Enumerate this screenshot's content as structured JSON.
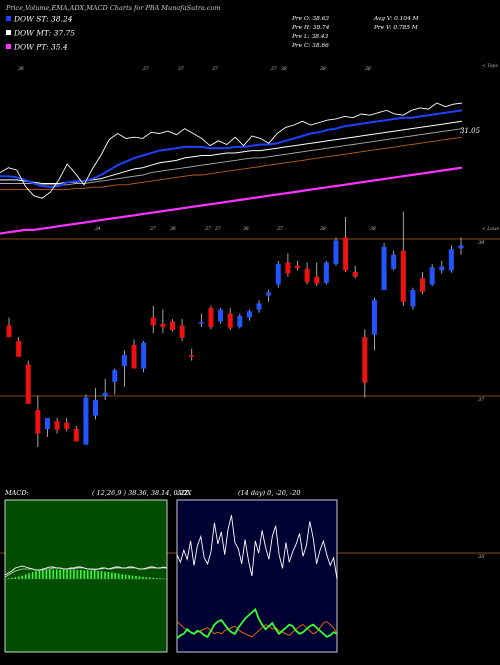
{
  "header": {
    "title": "Price,Volume,EMA,ADX,MACD Charts for PBA MunafaSutra.com",
    "legend": [
      {
        "label": "DOW ST: 38.24",
        "color": "#1e40ff"
      },
      {
        "label": "DOW MT: 37.75",
        "color": "#ffffff"
      },
      {
        "label": "DOW PT: 35.4",
        "color": "#ff33ff"
      }
    ],
    "ohlc": [
      "Pre  O: 38.63",
      "Pre  H: 38.74",
      "Pre  L: 38.43",
      "Pre  C: 38.66"
    ],
    "volume": [
      "Avg V: 0.104  M",
      "Pre  V: 0.785 M"
    ]
  },
  "ema_panel": {
    "top_tag": "< Tops",
    "low_tag": "< Lows",
    "price_label": "31.05",
    "top_markers": [
      "36",
      "37",
      "37",
      "37",
      "37",
      "38",
      "38",
      "38"
    ],
    "low_markers": [
      "34",
      "37",
      "36",
      "37",
      "37",
      "36",
      "37",
      "38",
      "38"
    ],
    "series": {
      "price": {
        "color": "#ffffff",
        "values": [
          32.2,
          32.6,
          32.4,
          31.1,
          30.3,
          30.1,
          30.6,
          31.6,
          32.9,
          32.1,
          31.2,
          32.5,
          33.6,
          34.9,
          35.4,
          35.0,
          35.1,
          35.0,
          35.5,
          35.4,
          35.6,
          35.3,
          35.8,
          35.4,
          35.0,
          34.4,
          34.8,
          34.5,
          35.1,
          34.4,
          35.2,
          35.0,
          34.6,
          35.4,
          35.9,
          36.1,
          36.4,
          36.1,
          36.3,
          36.5,
          36.6,
          36.8,
          36.7,
          37.0,
          36.9,
          37.1,
          37.3,
          37.0,
          36.9,
          37.3,
          37.5,
          37.4,
          37.9,
          37.6,
          37.8,
          37.9
        ]
      },
      "ema_short": {
        "color": "#1e40ff",
        "values": [
          31.9,
          31.9,
          31.8,
          31.6,
          31.3,
          31.1,
          31.0,
          31.1,
          31.4,
          31.5,
          31.5,
          31.7,
          32.0,
          32.4,
          32.8,
          33.1,
          33.4,
          33.6,
          33.8,
          34.0,
          34.1,
          34.2,
          34.3,
          34.3,
          34.3,
          34.2,
          34.2,
          34.2,
          34.3,
          34.3,
          34.4,
          34.5,
          34.5,
          34.6,
          34.8,
          35.0,
          35.2,
          35.4,
          35.5,
          35.7,
          35.8,
          36.0,
          36.1,
          36.2,
          36.3,
          36.4,
          36.5,
          36.6,
          36.7,
          36.7,
          36.8,
          36.9,
          37.0,
          37.1,
          37.2,
          37.3
        ]
      },
      "ema_mid": {
        "color": "#ffffff",
        "values": [
          31.6,
          31.6,
          31.6,
          31.5,
          31.4,
          31.3,
          31.3,
          31.3,
          31.4,
          31.4,
          31.5,
          31.6,
          31.7,
          31.9,
          32.1,
          32.3,
          32.5,
          32.6,
          32.8,
          33.0,
          33.1,
          33.2,
          33.4,
          33.5,
          33.6,
          33.6,
          33.7,
          33.8,
          33.8,
          33.9,
          34.0,
          34.0,
          34.1,
          34.2,
          34.3,
          34.4,
          34.5,
          34.6,
          34.7,
          34.8,
          34.9,
          35.0,
          35.1,
          35.2,
          35.3,
          35.4,
          35.5,
          35.6,
          35.7,
          35.8,
          35.9,
          36.0,
          36.1,
          36.2,
          36.3,
          36.4
        ]
      },
      "ema_long": {
        "color": "#aaaaaa",
        "values": [
          31.3,
          31.3,
          31.3,
          31.3,
          31.3,
          31.2,
          31.2,
          31.2,
          31.2,
          31.3,
          31.3,
          31.4,
          31.5,
          31.6,
          31.7,
          31.8,
          31.9,
          32.0,
          32.2,
          32.3,
          32.4,
          32.5,
          32.6,
          32.7,
          32.8,
          32.9,
          33.0,
          33.1,
          33.2,
          33.3,
          33.4,
          33.4,
          33.5,
          33.6,
          33.7,
          33.8,
          33.9,
          34.0,
          34.1,
          34.2,
          34.3,
          34.4,
          34.5,
          34.6,
          34.7,
          34.8,
          34.9,
          35.0,
          35.1,
          35.2,
          35.3,
          35.4,
          35.5,
          35.6,
          35.7,
          35.8
        ]
      },
      "ema_xlong": {
        "color": "#b85c1a",
        "values": [
          30.8,
          30.8,
          30.8,
          30.8,
          30.8,
          30.8,
          30.8,
          30.8,
          30.8,
          30.9,
          30.9,
          31.0,
          31.0,
          31.1,
          31.2,
          31.2,
          31.3,
          31.4,
          31.5,
          31.6,
          31.7,
          31.8,
          31.9,
          32.0,
          32.0,
          32.1,
          32.2,
          32.3,
          32.4,
          32.5,
          32.6,
          32.7,
          32.8,
          32.9,
          33.0,
          33.1,
          33.2,
          33.3,
          33.4,
          33.5,
          33.6,
          33.7,
          33.8,
          33.9,
          34.0,
          34.1,
          34.2,
          34.3,
          34.4,
          34.5,
          34.6,
          34.7,
          34.8,
          34.9,
          35.0,
          35.1
        ]
      },
      "ema_pt": {
        "color": "#ff33ff",
        "values": [
          27.2,
          27.3,
          27.4,
          27.5,
          27.5,
          27.6,
          27.7,
          27.8,
          27.9,
          28.0,
          28.1,
          28.2,
          28.3,
          28.4,
          28.5,
          28.6,
          28.7,
          28.8,
          28.9,
          29.0,
          29.1,
          29.2,
          29.3,
          29.4,
          29.5,
          29.6,
          29.7,
          29.8,
          29.9,
          30.0,
          30.1,
          30.2,
          30.3,
          30.4,
          30.5,
          30.6,
          30.7,
          30.8,
          30.9,
          31.0,
          31.1,
          31.2,
          31.3,
          31.4,
          31.5,
          31.6,
          31.7,
          31.8,
          31.9,
          32.0,
          32.1,
          32.2,
          32.3,
          32.4,
          32.5,
          32.6
        ]
      }
    }
  },
  "chart_data": {
    "type": "candlestick",
    "title": "Price,Volume,EMA,ADX,MACD Charts for PBA MunafaSutra.com",
    "y_ticks": [
      39,
      37,
      35
    ],
    "ylim": [
      34.8,
      39.35
    ],
    "candles": [
      {
        "o": 37.9,
        "h": 38.0,
        "l": 37.75,
        "c": 37.75
      },
      {
        "o": 37.7,
        "h": 37.75,
        "l": 37.5,
        "c": 37.5
      },
      {
        "o": 37.4,
        "h": 37.45,
        "l": 36.9,
        "c": 36.9
      },
      {
        "o": 36.82,
        "h": 37.0,
        "l": 36.35,
        "c": 36.52
      },
      {
        "o": 36.58,
        "h": 36.72,
        "l": 36.48,
        "c": 36.72
      },
      {
        "o": 36.68,
        "h": 36.72,
        "l": 36.52,
        "c": 36.57
      },
      {
        "o": 36.66,
        "h": 36.72,
        "l": 36.55,
        "c": 36.58
      },
      {
        "o": 36.58,
        "h": 36.62,
        "l": 36.42,
        "c": 36.42
      },
      {
        "o": 36.38,
        "h": 37.02,
        "l": 36.38,
        "c": 36.98
      },
      {
        "o": 36.75,
        "h": 37.1,
        "l": 36.7,
        "c": 36.95
      },
      {
        "o": 37.0,
        "h": 37.22,
        "l": 36.95,
        "c": 37.04
      },
      {
        "o": 37.18,
        "h": 37.35,
        "l": 37.02,
        "c": 37.33
      },
      {
        "o": 37.38,
        "h": 37.58,
        "l": 37.12,
        "c": 37.52
      },
      {
        "o": 37.65,
        "h": 37.72,
        "l": 37.35,
        "c": 37.35
      },
      {
        "o": 37.35,
        "h": 37.7,
        "l": 37.3,
        "c": 37.68
      },
      {
        "o": 38.0,
        "h": 38.15,
        "l": 37.8,
        "c": 37.9
      },
      {
        "o": 37.92,
        "h": 38.1,
        "l": 37.8,
        "c": 37.88
      },
      {
        "o": 37.95,
        "h": 37.98,
        "l": 37.82,
        "c": 37.84
      },
      {
        "o": 37.9,
        "h": 37.98,
        "l": 37.7,
        "c": 37.74
      },
      {
        "o": 37.52,
        "h": 37.6,
        "l": 37.45,
        "c": 37.5
      },
      {
        "o": 37.92,
        "h": 38.05,
        "l": 37.88,
        "c": 37.94
      },
      {
        "o": 38.12,
        "h": 38.15,
        "l": 37.85,
        "c": 37.88
      },
      {
        "o": 37.95,
        "h": 38.12,
        "l": 37.92,
        "c": 38.1
      },
      {
        "o": 38.05,
        "h": 38.12,
        "l": 37.84,
        "c": 37.87
      },
      {
        "o": 37.88,
        "h": 38.05,
        "l": 37.86,
        "c": 38.02
      },
      {
        "o": 38.0,
        "h": 38.1,
        "l": 37.96,
        "c": 38.08
      },
      {
        "o": 38.1,
        "h": 38.22,
        "l": 38.06,
        "c": 38.18
      },
      {
        "o": 38.28,
        "h": 38.35,
        "l": 38.2,
        "c": 38.32
      },
      {
        "o": 38.42,
        "h": 38.72,
        "l": 38.38,
        "c": 38.68
      },
      {
        "o": 38.7,
        "h": 38.82,
        "l": 38.52,
        "c": 38.56
      },
      {
        "o": 38.66,
        "h": 38.72,
        "l": 38.6,
        "c": 38.63
      },
      {
        "o": 38.62,
        "h": 38.7,
        "l": 38.42,
        "c": 38.45
      },
      {
        "o": 38.52,
        "h": 38.7,
        "l": 38.4,
        "c": 38.43
      },
      {
        "o": 38.44,
        "h": 38.72,
        "l": 38.42,
        "c": 38.7
      },
      {
        "o": 38.68,
        "h": 39.02,
        "l": 38.66,
        "c": 38.98
      },
      {
        "o": 39.02,
        "h": 39.28,
        "l": 38.58,
        "c": 38.6
      },
      {
        "o": 38.58,
        "h": 38.66,
        "l": 38.5,
        "c": 38.52
      },
      {
        "o": 37.75,
        "h": 37.85,
        "l": 36.98,
        "c": 37.17
      },
      {
        "o": 37.78,
        "h": 38.25,
        "l": 37.58,
        "c": 38.22
      },
      {
        "o": 38.35,
        "h": 38.95,
        "l": 38.35,
        "c": 38.9
      },
      {
        "o": 38.62,
        "h": 38.85,
        "l": 38.6,
        "c": 38.8
      },
      {
        "o": 38.85,
        "h": 39.35,
        "l": 38.15,
        "c": 38.2
      },
      {
        "o": 38.14,
        "h": 38.38,
        "l": 38.1,
        "c": 38.35
      },
      {
        "o": 38.5,
        "h": 38.58,
        "l": 38.3,
        "c": 38.33
      },
      {
        "o": 38.42,
        "h": 38.68,
        "l": 38.4,
        "c": 38.64
      },
      {
        "o": 38.6,
        "h": 38.72,
        "l": 38.56,
        "c": 38.65
      },
      {
        "o": 38.6,
        "h": 38.92,
        "l": 38.57,
        "c": 38.87
      },
      {
        "o": 38.88,
        "h": 39.02,
        "l": 38.8,
        "c": 38.92
      }
    ]
  },
  "macd_panel": {
    "label": "MACD:",
    "params": "( 12,26,9 ) 38.36,  38.14,  0.22",
    "histogram": [
      0.4,
      0.8,
      1.2,
      1.8,
      2.5,
      3.4,
      4.6,
      5.8,
      6.9,
      7.8,
      8.4,
      8.9,
      9.2,
      9.4,
      9.5,
      9.5,
      9.4,
      9.3,
      9.2,
      9.1,
      9.1,
      9.0,
      9.0,
      8.9,
      8.8,
      8.6,
      8.4,
      8.1,
      7.8,
      7.4,
      7.0,
      6.5,
      6.0,
      5.4,
      4.9,
      4.4,
      3.9,
      3.4,
      3.0,
      2.6,
      2.2,
      1.9,
      1.6,
      1.3,
      1.0,
      0.8,
      0.5,
      0.3
    ],
    "macd_line": [
      4,
      6,
      8,
      11,
      12,
      13,
      12,
      11,
      10,
      9,
      9,
      10,
      11,
      12,
      12,
      11,
      11,
      10,
      10,
      11,
      11,
      12,
      12,
      11,
      10,
      10,
      9,
      10,
      11,
      11,
      10,
      11,
      12,
      12,
      11,
      11,
      12,
      12,
      11,
      10,
      10,
      11,
      12,
      12,
      11,
      11,
      12,
      11
    ],
    "signal_line": [
      2,
      4,
      6,
      8,
      9,
      10,
      10,
      10,
      10,
      9,
      9,
      9,
      10,
      10,
      11,
      11,
      11,
      10,
      10,
      10,
      10,
      11,
      11,
      11,
      10,
      10,
      10,
      10,
      10,
      11,
      10,
      10,
      11,
      11,
      11,
      11,
      11,
      11,
      11,
      10,
      10,
      10,
      11,
      11,
      11,
      11,
      11,
      11
    ]
  },
  "adx_panel": {
    "label": "ADX",
    "params": "(14 day) 0,  -20,  -20",
    "adx": [
      64,
      59,
      67,
      61,
      73,
      57,
      70,
      76,
      62,
      58,
      66,
      85,
      71,
      79,
      64,
      81,
      90,
      72,
      68,
      58,
      74,
      60,
      50,
      73,
      65,
      80,
      69,
      61,
      76,
      83,
      64,
      55,
      72,
      59,
      66,
      71,
      78,
      63,
      70,
      86,
      75,
      58,
      67,
      73,
      64,
      57,
      62,
      48
    ],
    "plus_di": [
      9,
      11,
      12,
      15,
      13,
      12,
      14,
      13,
      11,
      10,
      14,
      18,
      20,
      21,
      18,
      15,
      13,
      12,
      16,
      19,
      22,
      24,
      26,
      28,
      22,
      18,
      15,
      17,
      19,
      15,
      12,
      14,
      16,
      18,
      17,
      14,
      12,
      13,
      15,
      17,
      18,
      16,
      14,
      12,
      10,
      11,
      13,
      12
    ],
    "minus_di": [
      20,
      18,
      16,
      14,
      13,
      12,
      13,
      14,
      15,
      16,
      14,
      12,
      13,
      12,
      14,
      15,
      16,
      17,
      15,
      13,
      12,
      11,
      10,
      12,
      14,
      16,
      18,
      17,
      15,
      16,
      14,
      13,
      12,
      11,
      13,
      15,
      17,
      18,
      16,
      14,
      12,
      13,
      16,
      19,
      20,
      18,
      16,
      12
    ]
  }
}
